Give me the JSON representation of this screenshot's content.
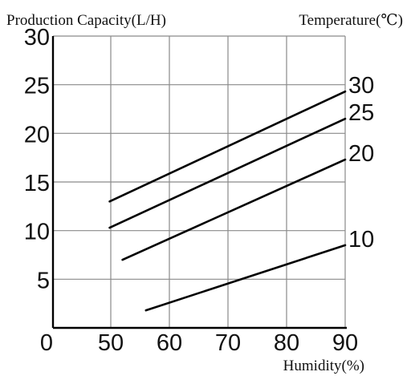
{
  "chart_data": {
    "type": "line",
    "ylabel": "Production Capacity(L/H)",
    "xlabel": "Humidity(%)",
    "right_axis_label": "Temperature(℃)",
    "xlim": [
      0,
      90
    ],
    "ylim": [
      0,
      30
    ],
    "x_ticks": [
      "0",
      "50",
      "60",
      "70",
      "80",
      "90"
    ],
    "y_ticks": [
      "5",
      "10",
      "15",
      "20",
      "25",
      "30"
    ],
    "grid": true,
    "series": [
      {
        "name": "30",
        "x": [
          49,
          90
        ],
        "y": [
          13,
          24.3
        ]
      },
      {
        "name": "25",
        "x": [
          49,
          90
        ],
        "y": [
          10.3,
          21.5
        ]
      },
      {
        "name": "20",
        "x": [
          52,
          90
        ],
        "y": [
          7,
          17.3
        ]
      },
      {
        "name": "10",
        "x": [
          56,
          90
        ],
        "y": [
          1.8,
          8.5
        ]
      }
    ]
  }
}
